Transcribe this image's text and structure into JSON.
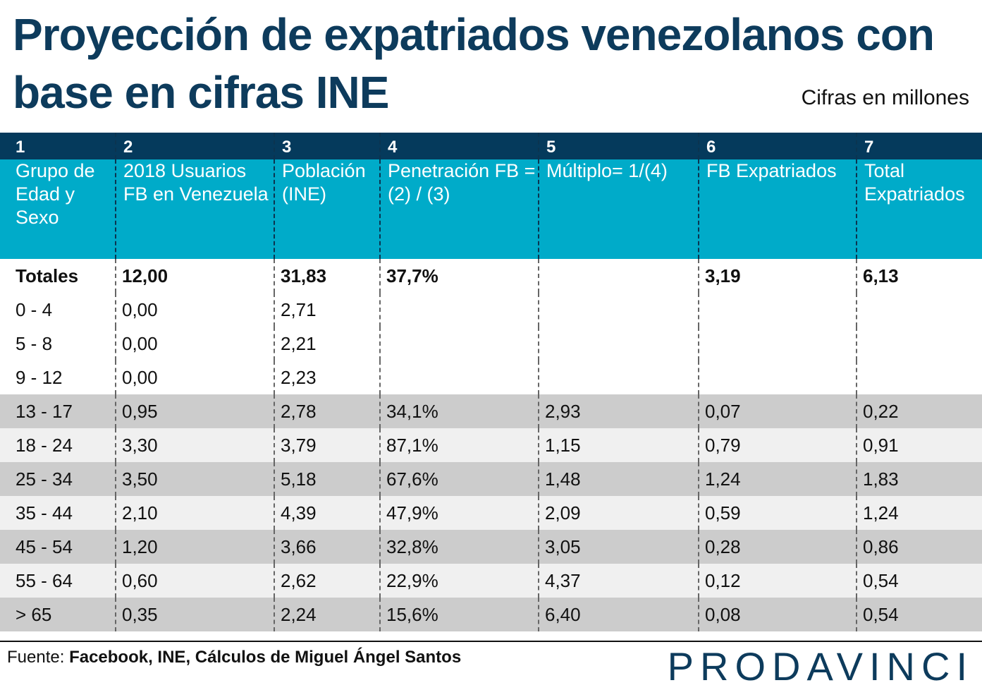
{
  "title": "Proyección de expatriados venezolanos con base en cifras INE",
  "units": "Cifras en millones",
  "colors": {
    "title": "#0d3b5c",
    "header_dark": "#053a5c",
    "header_cyan": "#00abc9",
    "row_dark": "#cccccc",
    "row_light": "#f0f0f0"
  },
  "chart_data": {
    "type": "table",
    "column_numbers": [
      "1",
      "2",
      "3",
      "4",
      "5",
      "6",
      "7"
    ],
    "columns": [
      "Grupo de Edad y Sexo",
      "2018 Usuarios FB en Venezuela",
      "Población (INE)",
      "Penetración FB = (2) / (3)",
      "Múltiplo= 1/(4)",
      "FB Expatriados",
      "Total Expatriados"
    ],
    "rows": [
      [
        "Totales",
        "12,00",
        "31,83",
        "37,7%",
        "",
        "3,19",
        "6,13"
      ],
      [
        "0 - 4",
        "0,00",
        "2,71",
        "",
        "",
        "",
        ""
      ],
      [
        "5 - 8",
        "0,00",
        "2,21",
        "",
        "",
        "",
        ""
      ],
      [
        "9 - 12",
        "0,00",
        "2,23",
        "",
        "",
        "",
        ""
      ],
      [
        "13 - 17",
        "0,95",
        "2,78",
        "34,1%",
        "2,93",
        "0,07",
        "0,22"
      ],
      [
        "18 - 24",
        "3,30",
        "3,79",
        "87,1%",
        "1,15",
        "0,79",
        "0,91"
      ],
      [
        "25 - 34",
        "3,50",
        "5,18",
        "67,6%",
        "1,48",
        "1,24",
        "1,83"
      ],
      [
        "35 - 44",
        "2,10",
        "4,39",
        "47,9%",
        "2,09",
        "0,59",
        "1,24"
      ],
      [
        "45 - 54",
        "1,20",
        "3,66",
        "32,8%",
        "3,05",
        "0,28",
        "0,86"
      ],
      [
        "55 - 64",
        "0,60",
        "2,62",
        "22,9%",
        "4,37",
        "0,12",
        "0,54"
      ],
      [
        "> 65",
        "0,35",
        "2,24",
        "15,6%",
        "6,40",
        "0,08",
        "0,54"
      ]
    ]
  },
  "footer": {
    "source_label": "Fuente:",
    "source_text": "Facebook, INE, Cálculos de Miguel Ángel Santos",
    "logo": "PRODAVINCI"
  }
}
